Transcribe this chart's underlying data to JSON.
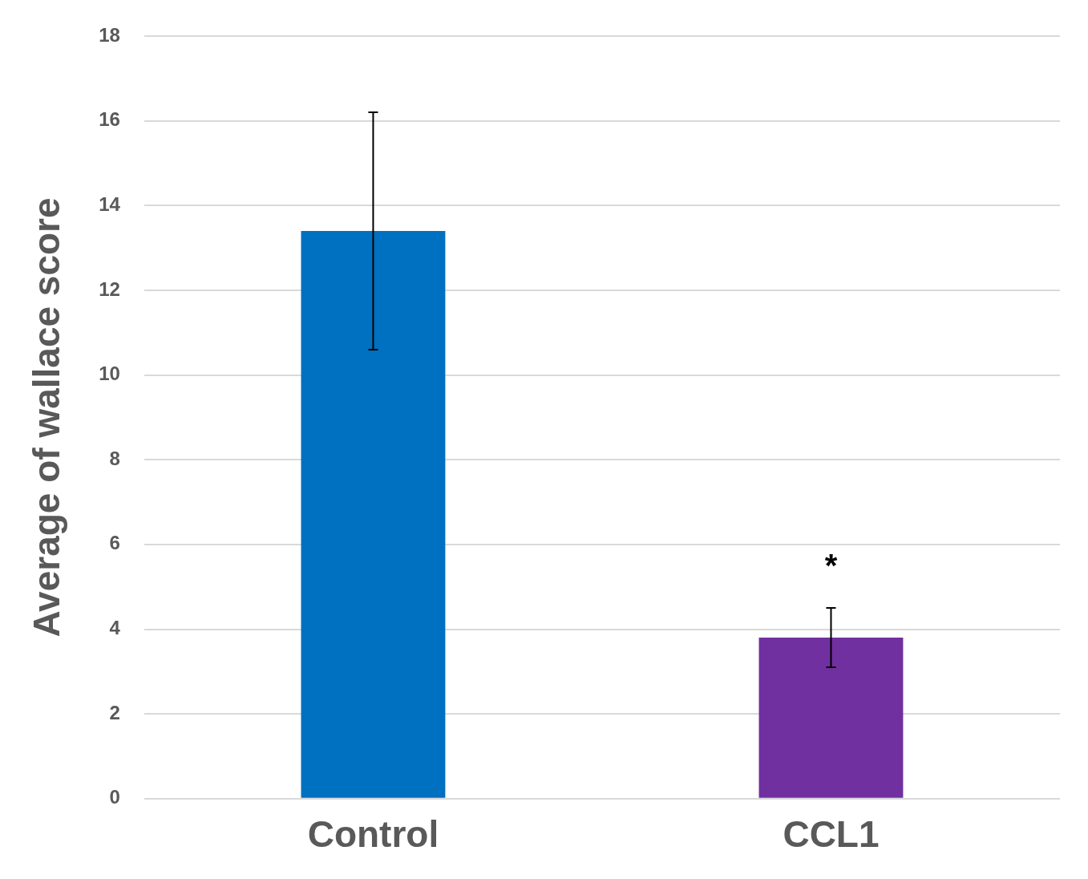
{
  "chart_data": {
    "type": "bar",
    "ylabel": "Average of wallace score",
    "categories": [
      "Control",
      "CCL1"
    ],
    "values": [
      13.4,
      3.8
    ],
    "colors": [
      "#0070c0",
      "#7030a0"
    ],
    "errors": [
      [
        10.6,
        16.2
      ],
      [
        3.1,
        4.5
      ]
    ],
    "ylim": [
      0,
      18
    ],
    "yticks": [
      0,
      2,
      4,
      6,
      8,
      10,
      12,
      14,
      16,
      18
    ],
    "grid": "y",
    "legend": false,
    "annotations": [
      "*"
    ]
  }
}
